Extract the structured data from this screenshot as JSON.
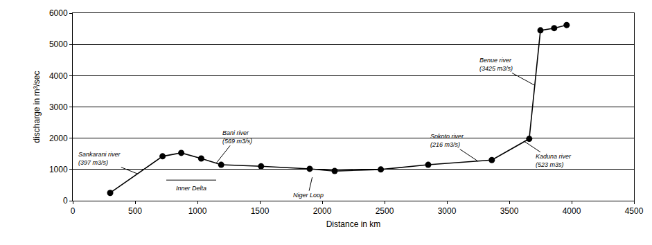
{
  "chart_data": {
    "type": "line",
    "x_label": "Distance in km",
    "y_label": "discharge in m³/sec",
    "x": [
      300,
      720,
      870,
      1030,
      1190,
      1510,
      1900,
      2100,
      2470,
      2850,
      3360,
      3660,
      3750,
      3860,
      3960
    ],
    "values": [
      250,
      1420,
      1530,
      1350,
      1150,
      1100,
      1020,
      950,
      1000,
      1150,
      1300,
      1980,
      5450,
      5520,
      5620
    ],
    "color": "#000000",
    "marker": "circle",
    "line_style": "solid",
    "xlim": [
      0,
      4500
    ],
    "xticks": [
      0,
      500,
      1000,
      1500,
      2000,
      2500,
      3000,
      3500,
      4000,
      4500
    ],
    "ylim": [
      0,
      6000
    ],
    "yticks": [
      0,
      1000,
      2000,
      3000,
      4000,
      5000,
      6000
    ],
    "grid": true,
    "annotations": [
      {
        "text": "Sankarani river\n(397 m3/s)",
        "x": 520,
        "y": 860
      },
      {
        "text": "Inner Delta",
        "x": 950,
        "y": 400,
        "span": [
          750,
          1150
        ]
      },
      {
        "text": "Bani river\n(569 m3/s)",
        "x": 1150,
        "y": 1200
      },
      {
        "text": "Niger Loop",
        "x": 1920,
        "y": 750
      },
      {
        "text": "Sokoto river\n(216 m3/s)",
        "x": 3250,
        "y": 1260
      },
      {
        "text": "Kaduna river\n(523 m3s)",
        "x": 3620,
        "y": 1900
      },
      {
        "text": "Benue river\n(3425 m3/s)",
        "x": 3700,
        "y": 3700
      }
    ]
  }
}
